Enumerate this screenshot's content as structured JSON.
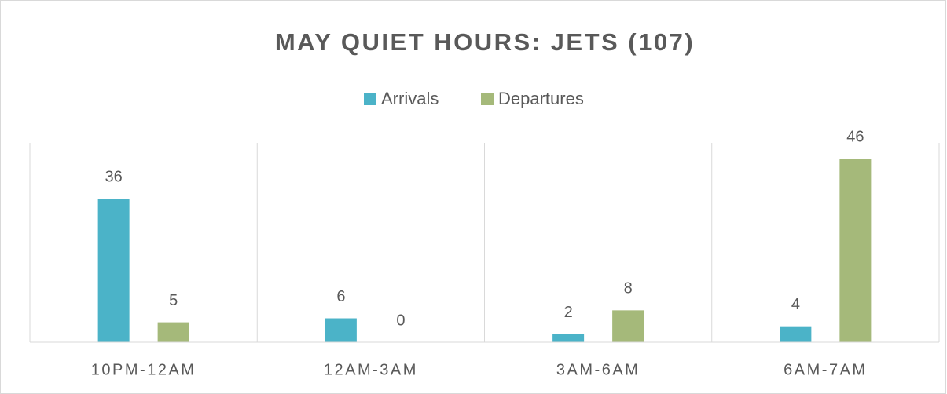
{
  "chart_data": {
    "type": "bar",
    "title": "MAY QUIET HOURS: JETS (107)",
    "categories": [
      "10PM-12AM",
      "12AM-3AM",
      "3AM-6AM",
      "6AM-7AM"
    ],
    "series": [
      {
        "name": "Arrivals",
        "color": "#4bb3c8",
        "values": [
          36,
          6,
          2,
          4
        ]
      },
      {
        "name": "Departures",
        "color": "#a5b97a",
        "values": [
          5,
          0,
          8,
          46
        ]
      }
    ],
    "ylim": [
      0,
      50
    ],
    "legend": "top"
  }
}
